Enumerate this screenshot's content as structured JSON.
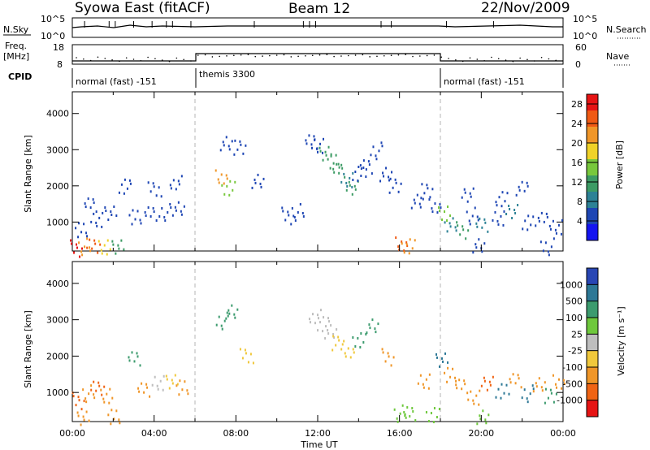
{
  "header": {
    "station": "Syowa East (fitACF)",
    "beam": "Beam 12",
    "date": "22/Nov/2009"
  },
  "aux_panels": {
    "nsky_label": "N.Sky",
    "nsky_ticks": [
      "10^5",
      "10^0"
    ],
    "nsearch_label": "N.Search",
    "nsearch_ticks": [
      "10^5",
      "10^0"
    ],
    "freq_label": "Freq.",
    "freq_unit": "[MHz]",
    "freq_ticks": [
      "18",
      "8"
    ],
    "nave_label": "Nave",
    "nave_ticks": [
      "60",
      "0"
    ],
    "cpid_label": "CPID",
    "cpid_segments": [
      "normal (fast) -151",
      "themis 3300",
      "normal (fast) -151"
    ]
  },
  "colors": {
    "axis": "#000000",
    "divider": "#b4b4b4",
    "power_scale": [
      "#1414f0",
      "#1e46b4",
      "#2d8296",
      "#3c9b64",
      "#78c83c",
      "#f0d228",
      "#f09628",
      "#f05a14",
      "#e61414"
    ],
    "velocity_scale": [
      "#2846b4",
      "#2d7896",
      "#3c9b6e",
      "#6ec83c",
      "#bebebe",
      "#f0c83c",
      "#f09628",
      "#f06414",
      "#e61414"
    ]
  },
  "chart_data": [
    {
      "type": "heatmap",
      "name": "power",
      "ylabel": "Slant Range [km]",
      "yticks": [
        "1000",
        "2000",
        "3000",
        "4000"
      ],
      "ylim": [
        200,
        4600
      ],
      "colorbar_label": "Power [dB]",
      "colorbar_ticks": [
        "4",
        "8",
        "12",
        "16",
        "20",
        "24",
        "28"
      ],
      "colorbar_range": [
        0,
        30
      ],
      "points": [
        [
          0.2,
          300,
          28
        ],
        [
          0.6,
          350,
          22
        ],
        [
          1.0,
          320,
          24
        ],
        [
          1.5,
          300,
          18
        ],
        [
          2.2,
          320,
          12
        ],
        [
          0.4,
          800,
          6
        ],
        [
          0.9,
          1500,
          5
        ],
        [
          1.2,
          1100,
          6
        ],
        [
          1.8,
          1300,
          5
        ],
        [
          3.0,
          1200,
          6
        ],
        [
          3.8,
          1300,
          5
        ],
        [
          4.5,
          1300,
          6
        ],
        [
          5.2,
          1350,
          5
        ],
        [
          4.0,
          1900,
          4
        ],
        [
          5.0,
          2100,
          5
        ],
        [
          2.5,
          2000,
          5
        ],
        [
          7.5,
          3200,
          5
        ],
        [
          8.2,
          3100,
          5
        ],
        [
          7.3,
          2300,
          20
        ],
        [
          7.6,
          2000,
          16
        ],
        [
          9.0,
          2200,
          4
        ],
        [
          10.5,
          1200,
          5
        ],
        [
          11.0,
          1300,
          6
        ],
        [
          11.7,
          3200,
          5
        ],
        [
          12.0,
          3100,
          5
        ],
        [
          12.3,
          2900,
          10
        ],
        [
          12.7,
          2700,
          12
        ],
        [
          13.0,
          2450,
          10
        ],
        [
          13.4,
          2200,
          9
        ],
        [
          13.7,
          2000,
          12
        ],
        [
          14.0,
          2400,
          5
        ],
        [
          14.3,
          2600,
          5
        ],
        [
          14.8,
          3000,
          5
        ],
        [
          15.3,
          2300,
          5
        ],
        [
          15.8,
          2000,
          6
        ],
        [
          16.1,
          400,
          24
        ],
        [
          16.4,
          350,
          20
        ],
        [
          16.8,
          1600,
          5
        ],
        [
          17.3,
          1900,
          6
        ],
        [
          17.7,
          1500,
          5
        ],
        [
          18.2,
          1300,
          14
        ],
        [
          18.5,
          1000,
          8
        ],
        [
          19.0,
          800,
          10
        ],
        [
          19.5,
          1200,
          6
        ],
        [
          20.0,
          900,
          8
        ],
        [
          20.8,
          1100,
          6
        ],
        [
          21.5,
          1300,
          7
        ],
        [
          22.3,
          1000,
          6
        ],
        [
          23.0,
          1100,
          6
        ],
        [
          23.6,
          900,
          5
        ],
        [
          19.3,
          1800,
          5
        ],
        [
          21.0,
          1700,
          4
        ],
        [
          22.0,
          2000,
          5
        ],
        [
          23.2,
          350,
          5
        ],
        [
          19.8,
          330,
          6
        ]
      ]
    },
    {
      "type": "heatmap",
      "name": "velocity",
      "xlabel": "Time UT",
      "xticks": [
        "00:00",
        "04:00",
        "08:00",
        "12:00",
        "16:00",
        "20:00",
        "00:00"
      ],
      "xlim_hours": [
        0,
        24
      ],
      "ylabel": "Slant Range [km]",
      "yticks": [
        "1000",
        "2000",
        "3000",
        "4000"
      ],
      "ylim": [
        200,
        4600
      ],
      "colorbar_label": "Velocity [m s⁻¹]",
      "colorbar_ticks": [
        "1000",
        "500",
        "100",
        "25",
        "-25",
        "-100",
        "-500",
        "-1000"
      ],
      "colorbar_range": [
        -1000,
        1000
      ],
      "points": [
        [
          0.3,
          800,
          -700
        ],
        [
          0.8,
          1000,
          -400
        ],
        [
          1.2,
          1100,
          -600
        ],
        [
          1.6,
          900,
          -300
        ],
        [
          0.5,
          300,
          -200
        ],
        [
          2.0,
          350,
          -150
        ],
        [
          3.5,
          1100,
          -200
        ],
        [
          4.2,
          1300,
          0
        ],
        [
          4.8,
          1350,
          -50
        ],
        [
          5.3,
          1200,
          -300
        ],
        [
          3.0,
          2000,
          200
        ],
        [
          7.3,
          3000,
          120
        ],
        [
          7.8,
          3200,
          300
        ],
        [
          8.5,
          2000,
          -50
        ],
        [
          11.8,
          3100,
          0
        ],
        [
          12.2,
          2900,
          10
        ],
        [
          12.6,
          2700,
          -20
        ],
        [
          13.0,
          2400,
          -60
        ],
        [
          13.5,
          2200,
          -40
        ],
        [
          14.0,
          2500,
          150
        ],
        [
          14.6,
          2900,
          400
        ],
        [
          15.4,
          2000,
          -200
        ],
        [
          16.0,
          450,
          60
        ],
        [
          16.5,
          400,
          80
        ],
        [
          17.2,
          1300,
          -200
        ],
        [
          18.0,
          1900,
          900
        ],
        [
          18.4,
          1500,
          -300
        ],
        [
          19.0,
          1200,
          -450
        ],
        [
          19.6,
          900,
          -500
        ],
        [
          20.3,
          1300,
          -600
        ],
        [
          21.0,
          1100,
          700
        ],
        [
          21.6,
          1400,
          -400
        ],
        [
          22.2,
          1000,
          500
        ],
        [
          22.8,
          1200,
          -300
        ],
        [
          23.4,
          900,
          200
        ],
        [
          23.8,
          1300,
          -500
        ],
        [
          17.6,
          400,
          60
        ],
        [
          20.0,
          350,
          50
        ]
      ]
    }
  ]
}
